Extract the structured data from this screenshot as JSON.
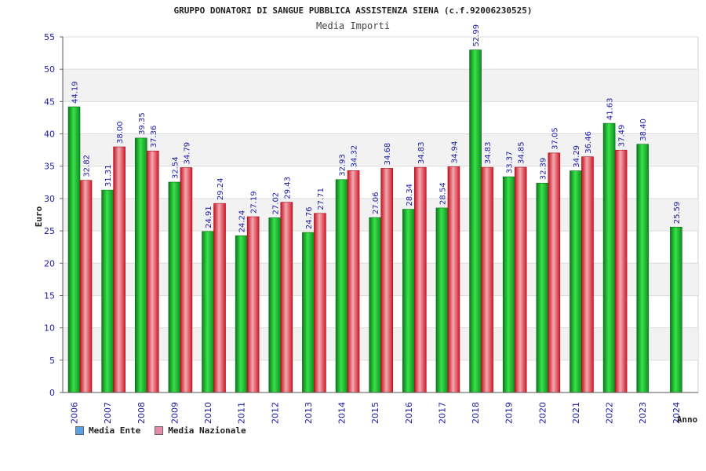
{
  "chart_data": {
    "type": "bar",
    "title": "GRUPPO DONATORI DI SANGUE PUBBLICA ASSISTENZA SIENA (c.f.92006230525)",
    "subtitle": "Media Importi",
    "ylabel": "Euro",
    "xlabel": "Anno",
    "ylim": [
      0,
      55
    ],
    "yticks": [
      0,
      5,
      10,
      15,
      20,
      25,
      30,
      35,
      40,
      45,
      50,
      55
    ],
    "grid": true,
    "legend_position": "bottom-left",
    "categories": [
      "2006",
      "2007",
      "2008",
      "2009",
      "2010",
      "2011",
      "2012",
      "2013",
      "2014",
      "2015",
      "2016",
      "2017",
      "2018",
      "2019",
      "2020",
      "2021",
      "2022",
      "2023",
      "2024"
    ],
    "series": [
      {
        "name": "Media Ente",
        "color": "#22bb33",
        "values": [
          44.19,
          31.31,
          39.35,
          32.54,
          24.91,
          24.24,
          27.02,
          24.76,
          32.93,
          27.06,
          28.34,
          28.54,
          52.99,
          33.37,
          32.39,
          34.29,
          41.63,
          38.4,
          25.59
        ],
        "labels": [
          "44.19",
          "31.31",
          "39.35",
          "32.54",
          "24.91",
          "24.24",
          "27.02",
          "24.76",
          "32.93",
          "27.06",
          "28.34",
          "28.54",
          "52.99",
          "33.37",
          "32.39",
          "34.29",
          "41.63",
          "38.40",
          "25.59"
        ]
      },
      {
        "name": "Media Nazionale",
        "color": "#dd3344",
        "values": [
          32.82,
          38.0,
          37.36,
          34.79,
          29.24,
          27.19,
          29.43,
          27.71,
          34.32,
          34.68,
          34.83,
          34.94,
          34.83,
          34.85,
          37.05,
          36.46,
          37.49,
          null,
          null
        ],
        "labels": [
          "32.82",
          "38.00",
          "37.36",
          "34.79",
          "29.24",
          "27.19",
          "29.43",
          "27.71",
          "34.32",
          "34.68",
          "34.83",
          "34.94",
          "34.83",
          "34.85",
          "37.05",
          "36.46",
          "37.49",
          null,
          null
        ]
      }
    ],
    "legend_swatch_colors": [
      "#5aa0e6",
      "#e58aa8"
    ]
  }
}
